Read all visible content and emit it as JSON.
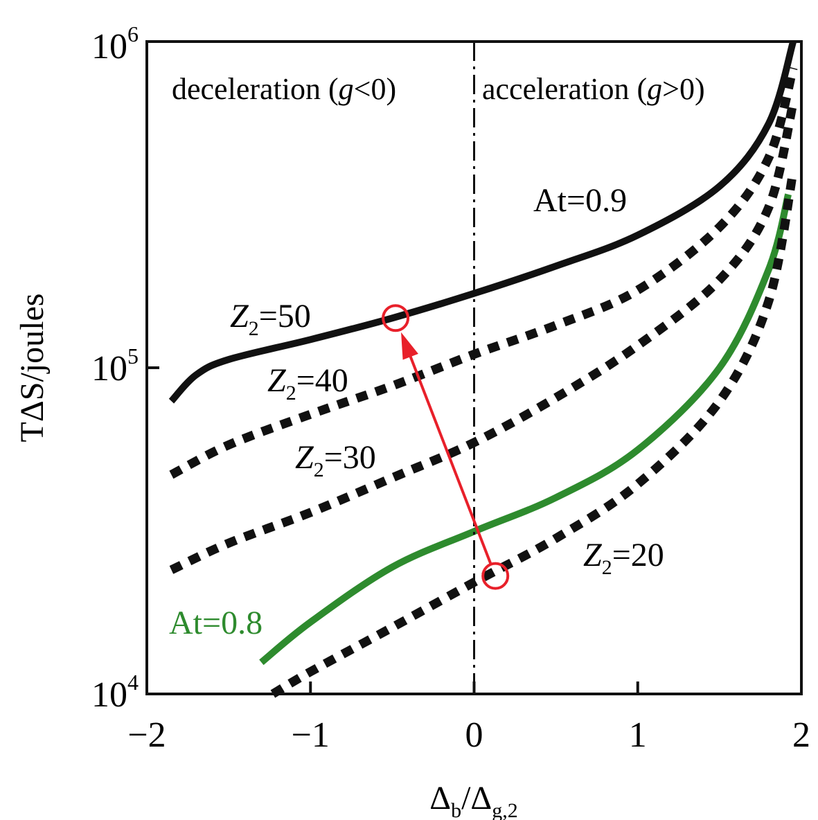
{
  "chart_data": {
    "type": "line",
    "xlabel": "Δb/Δg,2",
    "xlabel_parts": {
      "main1": "Δ",
      "sub1": "b",
      "main2": "/Δ",
      "sub2": "g,2"
    },
    "ylabel": "TΔS/joules",
    "xlim": [
      -2,
      2
    ],
    "ylim": [
      10000,
      1000000
    ],
    "yscale": "log",
    "xticks": [
      -2,
      -1,
      0,
      1,
      2
    ],
    "xtick_labels": [
      "−2",
      "−1",
      "0",
      "1",
      "2"
    ],
    "yticks": [
      10000,
      100000,
      1000000
    ],
    "ytick_labels": [
      {
        "base": "10",
        "exp": "4"
      },
      {
        "base": "10",
        "exp": "5"
      },
      {
        "base": "10",
        "exp": "6"
      }
    ],
    "grid": false,
    "region_labels": {
      "left": {
        "text1": "deceleration (",
        "var": "g",
        "text2": "<0)"
      },
      "right": {
        "text1": "acceleration (",
        "var": "g",
        "text2": ">0)"
      }
    },
    "vline": {
      "x": 0,
      "style": "dash-dot"
    },
    "colors": {
      "black": "#111111",
      "green": "#2e8b2e",
      "red": "#e8202a"
    },
    "series": [
      {
        "label": "Z2=50",
        "style": "solid",
        "color": "#111111",
        "x": [
          -1.85,
          -1.7,
          -1.5,
          -1.0,
          -0.5,
          0,
          0.5,
          1.0,
          1.5,
          1.8,
          1.95
        ],
        "y": [
          79000,
          95000,
          106000,
          122000,
          142000,
          169000,
          205000,
          255000,
          360000,
          560000,
          1000000
        ]
      },
      {
        "label": "Z2=40",
        "style": "dotted",
        "color": "#111111",
        "x": [
          -1.85,
          -1.5,
          -1.0,
          -0.5,
          0,
          0.5,
          1.0,
          1.5,
          1.8,
          1.95
        ],
        "y": [
          47000,
          58000,
          72000,
          88000,
          110000,
          135000,
          173000,
          270000,
          440000,
          830000
        ]
      },
      {
        "label": "Z2=30",
        "style": "dotted",
        "color": "#111111",
        "x": [
          -1.85,
          -1.5,
          -1.0,
          -0.5,
          0,
          0.5,
          1.0,
          1.5,
          1.8,
          1.95
        ],
        "y": [
          24000,
          29000,
          36000,
          46000,
          59000,
          81000,
          117000,
          186000,
          310000,
          650000
        ]
      },
      {
        "label": "At=0.8",
        "style": "solid",
        "color": "#2e8b2e",
        "x": [
          -1.3,
          -1.0,
          -0.5,
          0,
          0.5,
          1.0,
          1.5,
          1.8,
          1.92
        ],
        "y": [
          12500,
          16600,
          24500,
          31500,
          40000,
          56000,
          100000,
          200000,
          340000
        ]
      },
      {
        "label": "Z2=20",
        "style": "dotted",
        "color": "#111111",
        "x": [
          -1.23,
          -1.0,
          -0.5,
          0,
          0.5,
          1.0,
          1.5,
          1.8,
          1.95
        ],
        "y": [
          10000,
          11700,
          16000,
          22000,
          30000,
          44000,
          79000,
          160000,
          400000
        ]
      }
    ],
    "annotations": [
      {
        "id": "z50",
        "var": "Z",
        "sub": "2",
        "text": "=50"
      },
      {
        "id": "z40",
        "var": "Z",
        "sub": "2",
        "text": "=40"
      },
      {
        "id": "z30",
        "var": "Z",
        "sub": "2",
        "text": "=30"
      },
      {
        "id": "z20",
        "var": "Z",
        "sub": "2",
        "text": "=20"
      },
      {
        "id": "at09",
        "text": "At=0.9"
      },
      {
        "id": "at08",
        "text": "At=0.8"
      }
    ],
    "arrow": {
      "from": {
        "x": 0.13,
        "y": 23000
      },
      "to": {
        "x": -0.48,
        "y": 142000
      },
      "color": "#e8202a"
    }
  }
}
